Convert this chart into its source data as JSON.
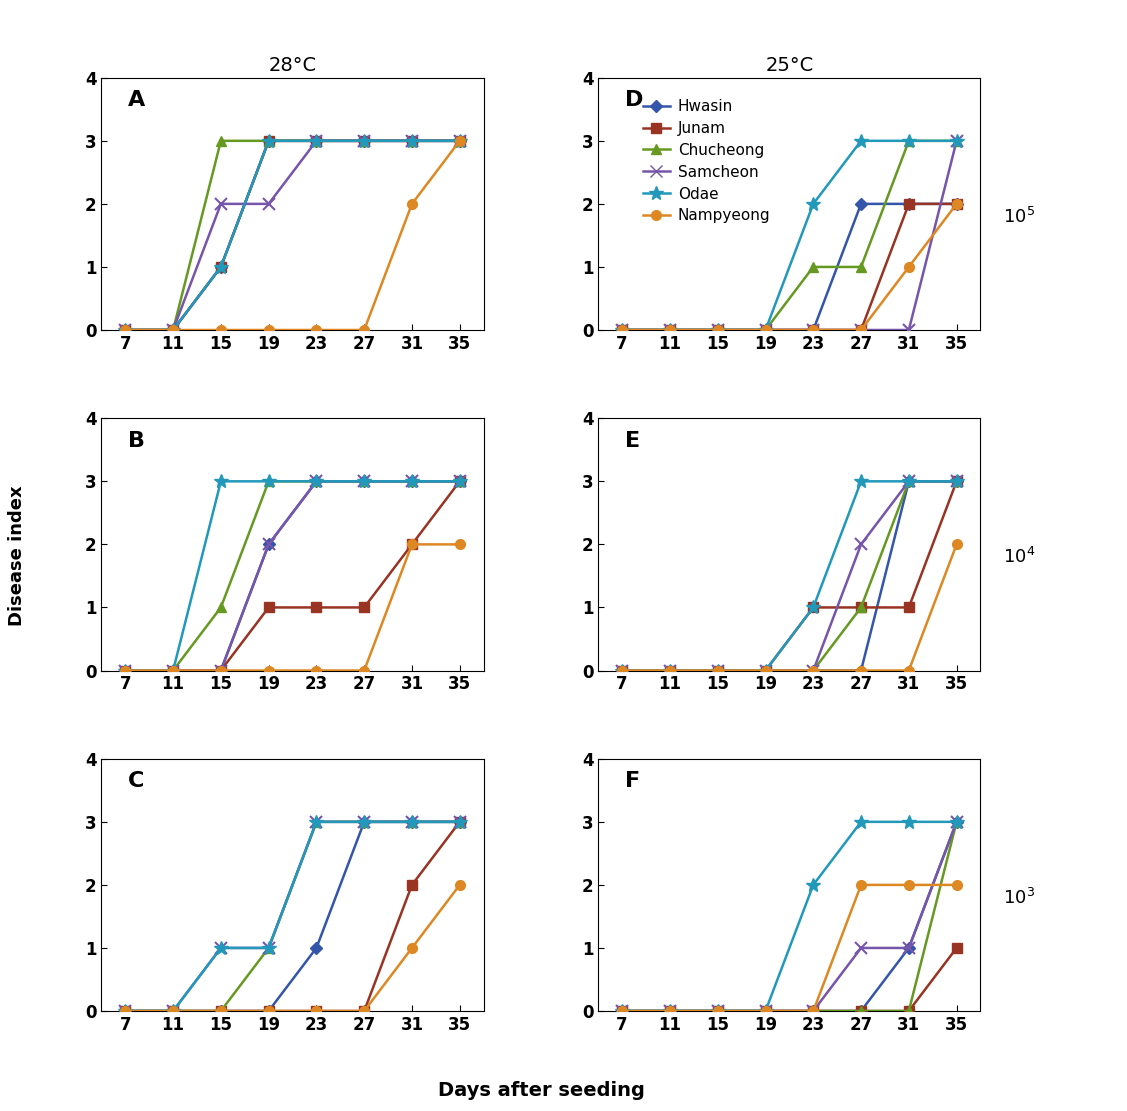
{
  "x": [
    7,
    11,
    15,
    19,
    23,
    27,
    31,
    35
  ],
  "colors": {
    "Hwasin": "#3355aa",
    "Junam": "#993322",
    "Chucheong": "#669922",
    "Samcheon": "#7755aa",
    "Odae": "#2299bb",
    "Nampyeong": "#dd8822"
  },
  "markers": {
    "Hwasin": "D",
    "Junam": "s",
    "Chucheong": "^",
    "Samcheon": "x",
    "Odae": "*",
    "Nampyeong": "o"
  },
  "markersizes": {
    "Hwasin": 6,
    "Junam": 7,
    "Chucheong": 7,
    "Samcheon": 8,
    "Odae": 10,
    "Nampyeong": 7
  },
  "col_titles": [
    "28°C",
    "25°C"
  ],
  "row_labels": [
    "10$^5$",
    "10$^4$",
    "10$^3$"
  ],
  "series_data": {
    "A": {
      "Hwasin": [
        0,
        0,
        1,
        3,
        3,
        3,
        3,
        3
      ],
      "Junam": [
        0,
        0,
        1,
        3,
        3,
        3,
        3,
        3
      ],
      "Chucheong": [
        0,
        0,
        3,
        3,
        3,
        3,
        3,
        3
      ],
      "Samcheon": [
        0,
        0,
        2,
        2,
        3,
        3,
        3,
        3
      ],
      "Odae": [
        0,
        0,
        1,
        3,
        3,
        3,
        3,
        3
      ],
      "Nampyeong": [
        0,
        0,
        0,
        0,
        0,
        0,
        2,
        3
      ]
    },
    "B": {
      "Hwasin": [
        0,
        0,
        0,
        2,
        3,
        3,
        3,
        3
      ],
      "Junam": [
        0,
        0,
        0,
        1,
        1,
        1,
        2,
        3
      ],
      "Chucheong": [
        0,
        0,
        1,
        3,
        3,
        3,
        3,
        3
      ],
      "Samcheon": [
        0,
        0,
        0,
        2,
        3,
        3,
        3,
        3
      ],
      "Odae": [
        0,
        0,
        3,
        3,
        3,
        3,
        3,
        3
      ],
      "Nampyeong": [
        0,
        0,
        0,
        0,
        0,
        0,
        2,
        2
      ]
    },
    "C": {
      "Hwasin": [
        0,
        0,
        0,
        0,
        1,
        3,
        3,
        3
      ],
      "Junam": [
        0,
        0,
        0,
        0,
        0,
        0,
        2,
        3
      ],
      "Chucheong": [
        0,
        0,
        0,
        1,
        3,
        3,
        3,
        3
      ],
      "Samcheon": [
        0,
        0,
        1,
        1,
        3,
        3,
        3,
        3
      ],
      "Odae": [
        0,
        0,
        1,
        1,
        3,
        3,
        3,
        3
      ],
      "Nampyeong": [
        0,
        0,
        0,
        0,
        0,
        0,
        1,
        2
      ]
    },
    "D": {
      "Hwasin": [
        0,
        0,
        0,
        0,
        0,
        2,
        2,
        2
      ],
      "Junam": [
        0,
        0,
        0,
        0,
        0,
        0,
        2,
        2
      ],
      "Chucheong": [
        0,
        0,
        0,
        0,
        1,
        1,
        3,
        3
      ],
      "Samcheon": [
        0,
        0,
        0,
        0,
        0,
        0,
        0,
        3
      ],
      "Odae": [
        0,
        0,
        0,
        0,
        2,
        3,
        3,
        3
      ],
      "Nampyeong": [
        0,
        0,
        0,
        0,
        0,
        0,
        1,
        2
      ]
    },
    "E": {
      "Hwasin": [
        0,
        0,
        0,
        0,
        0,
        0,
        3,
        3
      ],
      "Junam": [
        0,
        0,
        0,
        0,
        1,
        1,
        1,
        3
      ],
      "Chucheong": [
        0,
        0,
        0,
        0,
        0,
        1,
        3,
        3
      ],
      "Samcheon": [
        0,
        0,
        0,
        0,
        0,
        2,
        3,
        3
      ],
      "Odae": [
        0,
        0,
        0,
        0,
        1,
        3,
        3,
        3
      ],
      "Nampyeong": [
        0,
        0,
        0,
        0,
        0,
        0,
        0,
        2
      ]
    },
    "F": {
      "Hwasin": [
        0,
        0,
        0,
        0,
        0,
        0,
        1,
        3
      ],
      "Junam": [
        0,
        0,
        0,
        0,
        0,
        0,
        0,
        1
      ],
      "Chucheong": [
        0,
        0,
        0,
        0,
        0,
        0,
        0,
        3
      ],
      "Samcheon": [
        0,
        0,
        0,
        0,
        0,
        1,
        1,
        3
      ],
      "Odae": [
        0,
        0,
        0,
        0,
        2,
        3,
        3,
        3
      ],
      "Nampyeong": [
        0,
        0,
        0,
        0,
        0,
        2,
        2,
        2
      ]
    }
  },
  "ylabel": "Disease index",
  "xlabel": "Days after seeding",
  "ylim": [
    0,
    4
  ],
  "yticks": [
    0,
    1,
    2,
    3,
    4
  ],
  "xticks": [
    7,
    11,
    15,
    19,
    23,
    27,
    31,
    35
  ],
  "legend_variety_order": [
    "Hwasin",
    "Junam",
    "Chucheong",
    "Samcheon",
    "Odae",
    "Nampyeong"
  ],
  "legend_panel": "D",
  "linewidth": 1.8
}
